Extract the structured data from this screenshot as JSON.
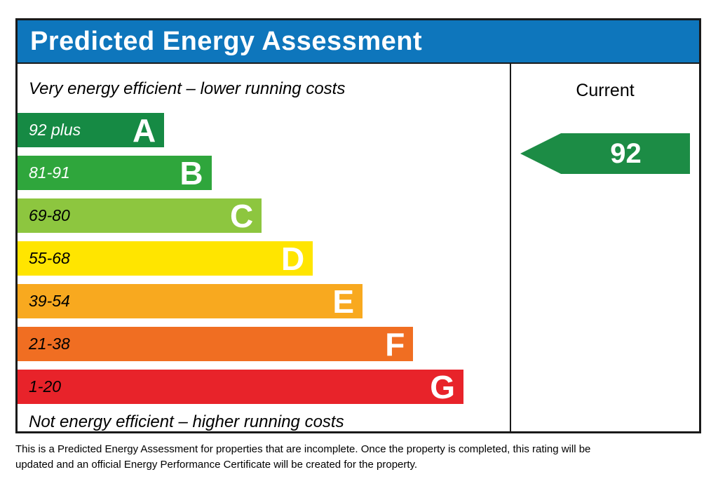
{
  "title": "Predicted Energy Assessment",
  "colors": {
    "header_blue": "#0e76bc",
    "border_black": "#1a1a1a",
    "arrow_green": "#1c8c45"
  },
  "scale": {
    "top_note": "Very energy efficient – lower running costs",
    "bottom_note": "Not energy efficient – higher running costs"
  },
  "current_column": {
    "header": "Current",
    "value": "92",
    "arrow_color": "#1c8c45"
  },
  "footer": "This is a Predicted Energy Assessment for properties that are incomplete. Once the property is completed, this rating will be updated and an official Energy Performance Certificate will be created for the property.",
  "chart_data": {
    "type": "bar",
    "title": "Predicted Energy Assessment",
    "orientation": "horizontal",
    "categories": [
      "A",
      "B",
      "C",
      "D",
      "E",
      "F",
      "G"
    ],
    "ranges": [
      "92 plus",
      "81-91",
      "69-80",
      "55-68",
      "39-54",
      "21-38",
      "1-20"
    ],
    "bar_width_percent": [
      29.8,
      39.4,
      49.6,
      60.0,
      70.1,
      80.4,
      90.6
    ],
    "colors": [
      "#168a44",
      "#2fa63c",
      "#8dc63f",
      "#ffe500",
      "#f8a91f",
      "#f06e22",
      "#e8232a"
    ],
    "range_text_colors": [
      "#ffffff",
      "#ffffff",
      "#000000",
      "#000000",
      "#000000",
      "#000000",
      "#000000"
    ],
    "top_annotation": "Very energy efficient – lower running costs",
    "bottom_annotation": "Not energy efficient – higher running costs",
    "current_rating": 92,
    "current_band": "A",
    "legend_position": "right-column"
  }
}
